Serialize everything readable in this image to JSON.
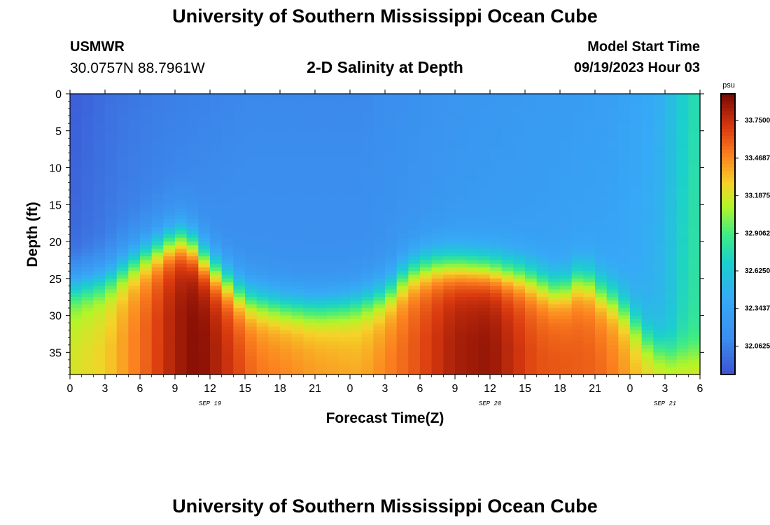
{
  "page": {
    "title_top": "University of Southern Mississippi Ocean Cube",
    "title_bottom": "University of Southern Mississippi Ocean Cube",
    "station": "USMWR",
    "coordinates": "30.0757N  88.7961W",
    "subtitle": "2-D Salinity at Depth",
    "model_start_label": "Model Start Time",
    "model_start_value": "09/19/2023 Hour 03"
  },
  "chart_data": {
    "type": "heatmap",
    "title": "2-D Salinity at Depth",
    "xlabel": "Forecast Time(Z)",
    "ylabel": "Depth (ft)",
    "x_tick_labels": [
      "0",
      "3",
      "6",
      "9",
      "12",
      "15",
      "18",
      "21",
      "0",
      "3",
      "6",
      "9",
      "12",
      "15",
      "18",
      "21",
      "0",
      "3",
      "6"
    ],
    "x_date_labels": [
      {
        "text": "SEP 19",
        "hour": 12
      },
      {
        "text": "SEP 20",
        "hour": 36
      },
      {
        "text": "SEP 21",
        "hour": 51
      }
    ],
    "x_range_hours": [
      0,
      54
    ],
    "y_ticks": [
      0,
      5,
      10,
      15,
      20,
      25,
      30,
      35
    ],
    "y_range": [
      0,
      38
    ],
    "colorbar": {
      "unit": "psu",
      "vmin": 31.85,
      "vmax": 33.95,
      "ticks": [
        33.75,
        33.4687,
        33.1875,
        32.9062,
        32.625,
        32.3437,
        32.0625
      ],
      "tick_labels": [
        "33.7500",
        "33.4687",
        "33.1875",
        "32.9062",
        "32.6250",
        "32.3437",
        "32.0625"
      ]
    },
    "halocline_depth_ft_by_hour": [
      [
        0,
        26
      ],
      [
        3,
        25
      ],
      [
        6,
        22
      ],
      [
        9,
        19.5
      ],
      [
        10,
        19.5
      ],
      [
        12,
        23
      ],
      [
        15,
        27.5
      ],
      [
        18,
        28.5
      ],
      [
        21,
        29
      ],
      [
        24,
        28.5
      ],
      [
        27,
        27
      ],
      [
        29,
        24
      ],
      [
        31,
        23
      ],
      [
        33,
        23
      ],
      [
        36,
        23.5
      ],
      [
        39,
        24.5
      ],
      [
        42,
        26.5
      ],
      [
        44,
        24.5
      ],
      [
        45,
        26
      ],
      [
        47,
        28
      ],
      [
        48,
        30
      ],
      [
        49.5,
        33
      ],
      [
        51,
        35
      ],
      [
        54,
        35
      ]
    ],
    "surface_salinity_psu_by_hour": [
      [
        0,
        31.9
      ],
      [
        4,
        32.0
      ],
      [
        8,
        32.05
      ],
      [
        15,
        32.1
      ],
      [
        25,
        32.1
      ],
      [
        33,
        32.2
      ],
      [
        40,
        32.25
      ],
      [
        46,
        32.3
      ],
      [
        49,
        32.38
      ],
      [
        50.5,
        32.45
      ],
      [
        51.5,
        32.55
      ],
      [
        52.5,
        32.68
      ],
      [
        54,
        32.8
      ]
    ],
    "bottom_salinity_psu_by_hour": [
      [
        0,
        33.1
      ],
      [
        3,
        33.2
      ],
      [
        6,
        33.45
      ],
      [
        9,
        33.75
      ],
      [
        11,
        33.85
      ],
      [
        13,
        33.7
      ],
      [
        16,
        33.45
      ],
      [
        21,
        33.35
      ],
      [
        25,
        33.3
      ],
      [
        29,
        33.5
      ],
      [
        33,
        33.75
      ],
      [
        36,
        33.8
      ],
      [
        40,
        33.55
      ],
      [
        45,
        33.5
      ],
      [
        47,
        33.4
      ],
      [
        49,
        33.25
      ],
      [
        51,
        33.2
      ],
      [
        54,
        33.2
      ]
    ]
  }
}
